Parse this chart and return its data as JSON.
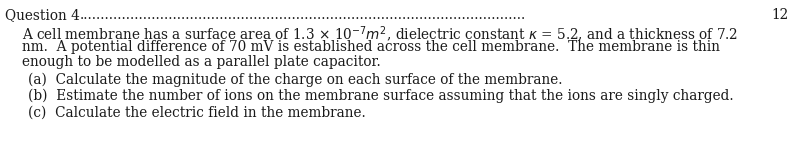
{
  "title": "Question 4",
  "title_number": "12",
  "line1": "A cell membrane has a surface area of 1.3 × 10$^{-7}$$m^2$, dielectric constant $\\kappa$ = 5.2, and a thickness of 7.2",
  "line2": "nm.  A potential difference of 70 mV is established across the cell membrane.  The membrane is thin",
  "line3": "enough to be modelled as a parallel plate capacitor.",
  "part_a": "(a)  Calculate the magnitude of the charge on each surface of the membrane.",
  "part_b": "(b)  Estimate the number of ions on the membrane surface assuming that the ions are singly charged.",
  "part_c": "(c)  Calculate the electric field in the membrane.",
  "font_size": 9.8,
  "bg_color": "#ffffff",
  "text_color": "#1a1a1a"
}
